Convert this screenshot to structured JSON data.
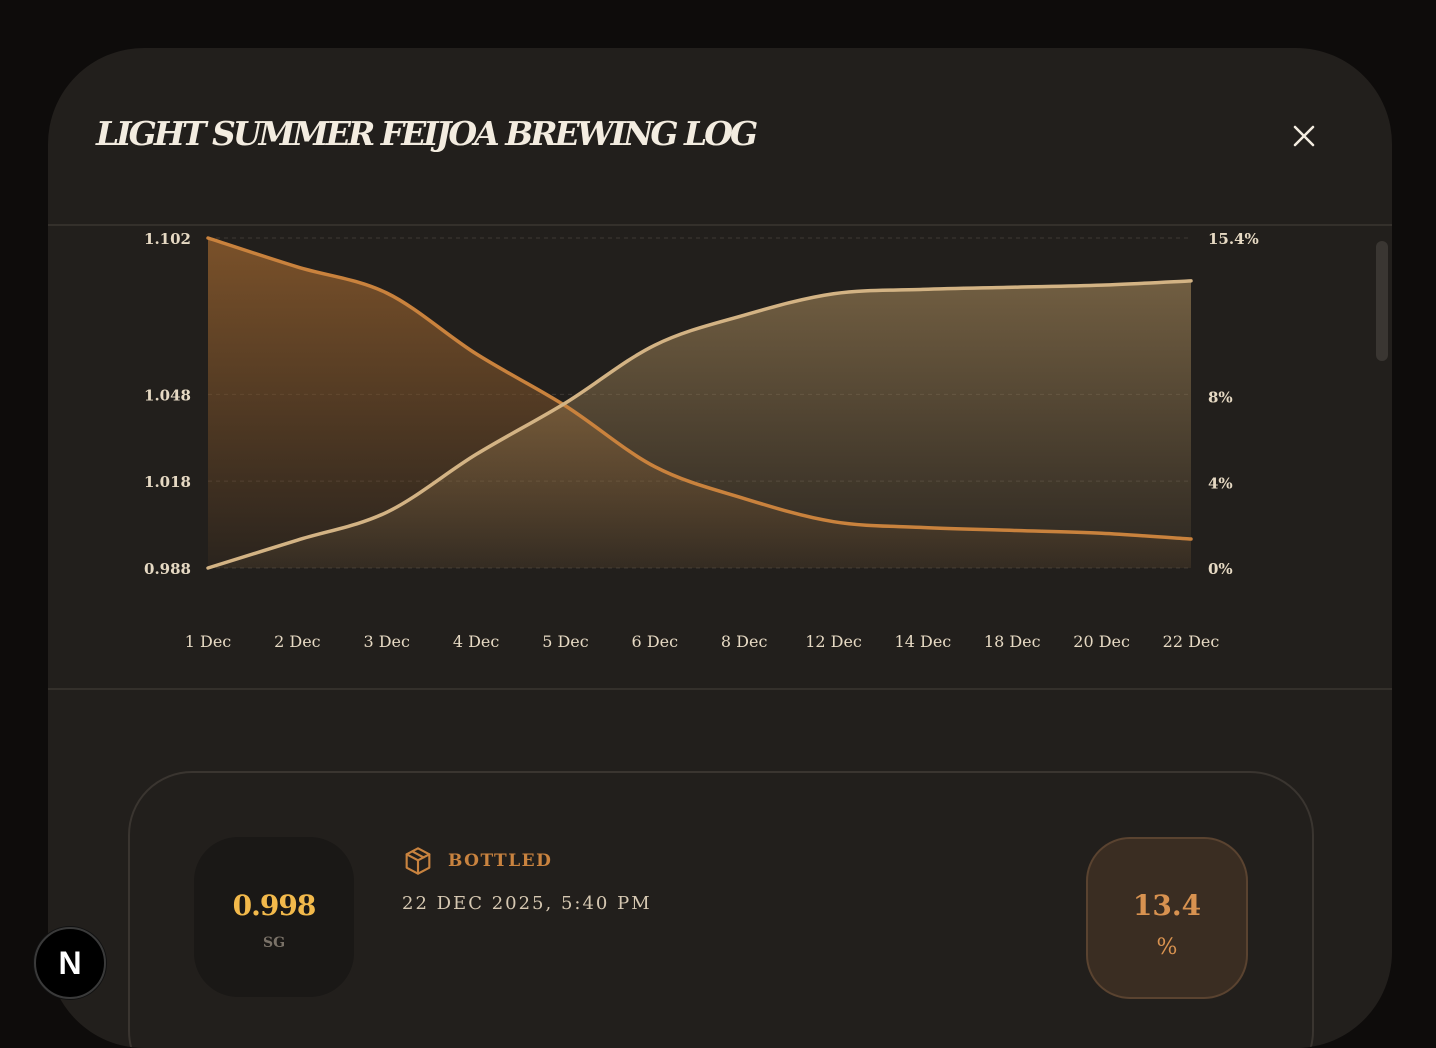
{
  "modal": {
    "title": "LIGHT SUMMER FEIJOA BREWING LOG"
  },
  "icons": {
    "close": "close-icon",
    "status": "package-icon",
    "dev_badge": "nextjs-logo-icon"
  },
  "colors": {
    "gravity_line": "#c9823d",
    "abv_line": "#d3b384",
    "background": "#221f1c",
    "accent_gold": "#f2b94b"
  },
  "chart_data": {
    "type": "area",
    "categories": [
      "1 Dec",
      "2 Dec",
      "3 Dec",
      "4 Dec",
      "5 Dec",
      "6 Dec",
      "8 Dec",
      "12 Dec",
      "14 Dec",
      "18 Dec",
      "20 Dec",
      "22 Dec"
    ],
    "series": [
      {
        "axis": "left",
        "color": "#c9823d",
        "values": [
          1.102,
          1.092,
          1.083,
          1.062,
          1.044,
          1.023,
          1.012,
          1.004,
          1.002,
          1.001,
          1.0,
          0.998
        ]
      },
      {
        "axis": "right",
        "color": "#d3b384",
        "values": [
          0.0,
          1.3,
          2.6,
          5.3,
          7.7,
          10.4,
          11.8,
          12.8,
          13.0,
          13.1,
          13.2,
          13.4
        ]
      }
    ],
    "y_left": {
      "ticks": [
        0.988,
        1.018,
        1.048,
        1.102
      ],
      "tick_labels": [
        "0.988",
        "1.018",
        "1.048",
        "1.102"
      ],
      "range": [
        0.988,
        1.102
      ]
    },
    "y_right": {
      "ticks": [
        0,
        4,
        8,
        15.4
      ],
      "tick_labels": [
        "0%",
        "4%",
        "8%",
        "15.4%"
      ],
      "range": [
        0,
        15.4
      ]
    },
    "grid": true
  },
  "entry": {
    "sg_value": "0.998",
    "sg_unit": "SG",
    "status": "BOTTLED",
    "date": "22 DEC 2025, 5:40 PM",
    "abv_value": "13.4",
    "abv_unit": "%"
  },
  "dev_badge": {
    "label": "N"
  }
}
